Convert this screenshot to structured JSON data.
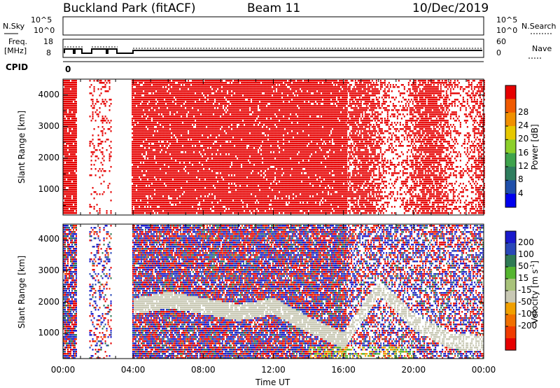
{
  "header": {
    "station": "Buckland Park (fitACF)",
    "beam": "Beam 11",
    "date": "10/Dec/2019"
  },
  "top_panels": {
    "nsky_label": "N.Sky",
    "nsky_ticks": [
      "10^5",
      "10^0"
    ],
    "nsearch_label": "N.Search",
    "nsearch_ticks": [
      "10^5",
      "10^0"
    ],
    "freq_label_1": "Freq.",
    "freq_label_2": "[MHz]",
    "freq_ticks": [
      "18",
      "8"
    ],
    "nave_label": "Nave",
    "nave_ticks": [
      "60",
      "0"
    ],
    "cpid_label": "CPID",
    "cpid_value": "0"
  },
  "colors": {
    "power_scale": [
      "#0000ee",
      "#1f4faa",
      "#2e7d5e",
      "#3fa34d",
      "#8ccf2a",
      "#e6c800",
      "#f09000",
      "#f05a00",
      "#e60000"
    ],
    "velocity_scale": [
      "#1a1acc",
      "#2a48b8",
      "#2f7a55",
      "#55b530",
      "#a8c27a",
      "#c8c8b4",
      "#f0a000",
      "#f07000",
      "#f03c00",
      "#e60000"
    ]
  },
  "chart_data": [
    {
      "type": "heatmap",
      "name": "power",
      "xlabel": "",
      "ylabel": "Slant Range [km]",
      "x_ticks": [
        "00:00",
        "04:00",
        "08:00",
        "12:00",
        "16:00",
        "20:00",
        "00:00"
      ],
      "y_ticks": [
        1000,
        2000,
        3000,
        4000
      ],
      "ylim": [
        200,
        4500
      ],
      "colorbar": {
        "label": "Power [dB]",
        "ticks": [
          4,
          8,
          12,
          16,
          20,
          24,
          28
        ]
      },
      "regions": [
        {
          "start": "00:00",
          "end": "00:45",
          "coverage": "dense",
          "value_db": 30
        },
        {
          "start": "01:30",
          "end": "02:45",
          "coverage": "sparse",
          "value_db": 30
        },
        {
          "start": "03:55",
          "end": "16:10",
          "coverage": "dense",
          "value_db": 30
        },
        {
          "start": "16:10",
          "end": "24:00",
          "coverage": "patchy",
          "value_db": 30
        }
      ]
    },
    {
      "type": "heatmap",
      "name": "velocity",
      "xlabel": "Time UT",
      "ylabel": "Slant Range [km]",
      "x_ticks": [
        "00:00",
        "04:00",
        "08:00",
        "12:00",
        "16:00",
        "20:00",
        "00:00"
      ],
      "y_ticks": [
        1000,
        2000,
        3000,
        4000
      ],
      "ylim": [
        200,
        4500
      ],
      "colorbar": {
        "label": "Velocity [m s^-1]",
        "ticks": [
          200,
          100,
          50,
          15,
          -15,
          -50,
          -100,
          -200
        ]
      },
      "ground_scatter_band": [
        {
          "time": "04:00",
          "range_km": 1900
        },
        {
          "time": "06:00",
          "range_km": 2100
        },
        {
          "time": "08:00",
          "range_km": 1900
        },
        {
          "time": "10:00",
          "range_km": 1700
        },
        {
          "time": "12:00",
          "range_km": 1900
        },
        {
          "time": "14:00",
          "range_km": 1300
        },
        {
          "time": "16:00",
          "range_km": 800
        },
        {
          "time": "18:00",
          "range_km": 2500
        },
        {
          "time": "20:00",
          "range_km": 1400
        },
        {
          "time": "22:00",
          "range_km": 800
        },
        {
          "time": "24:00",
          "range_km": 700
        }
      ]
    }
  ]
}
